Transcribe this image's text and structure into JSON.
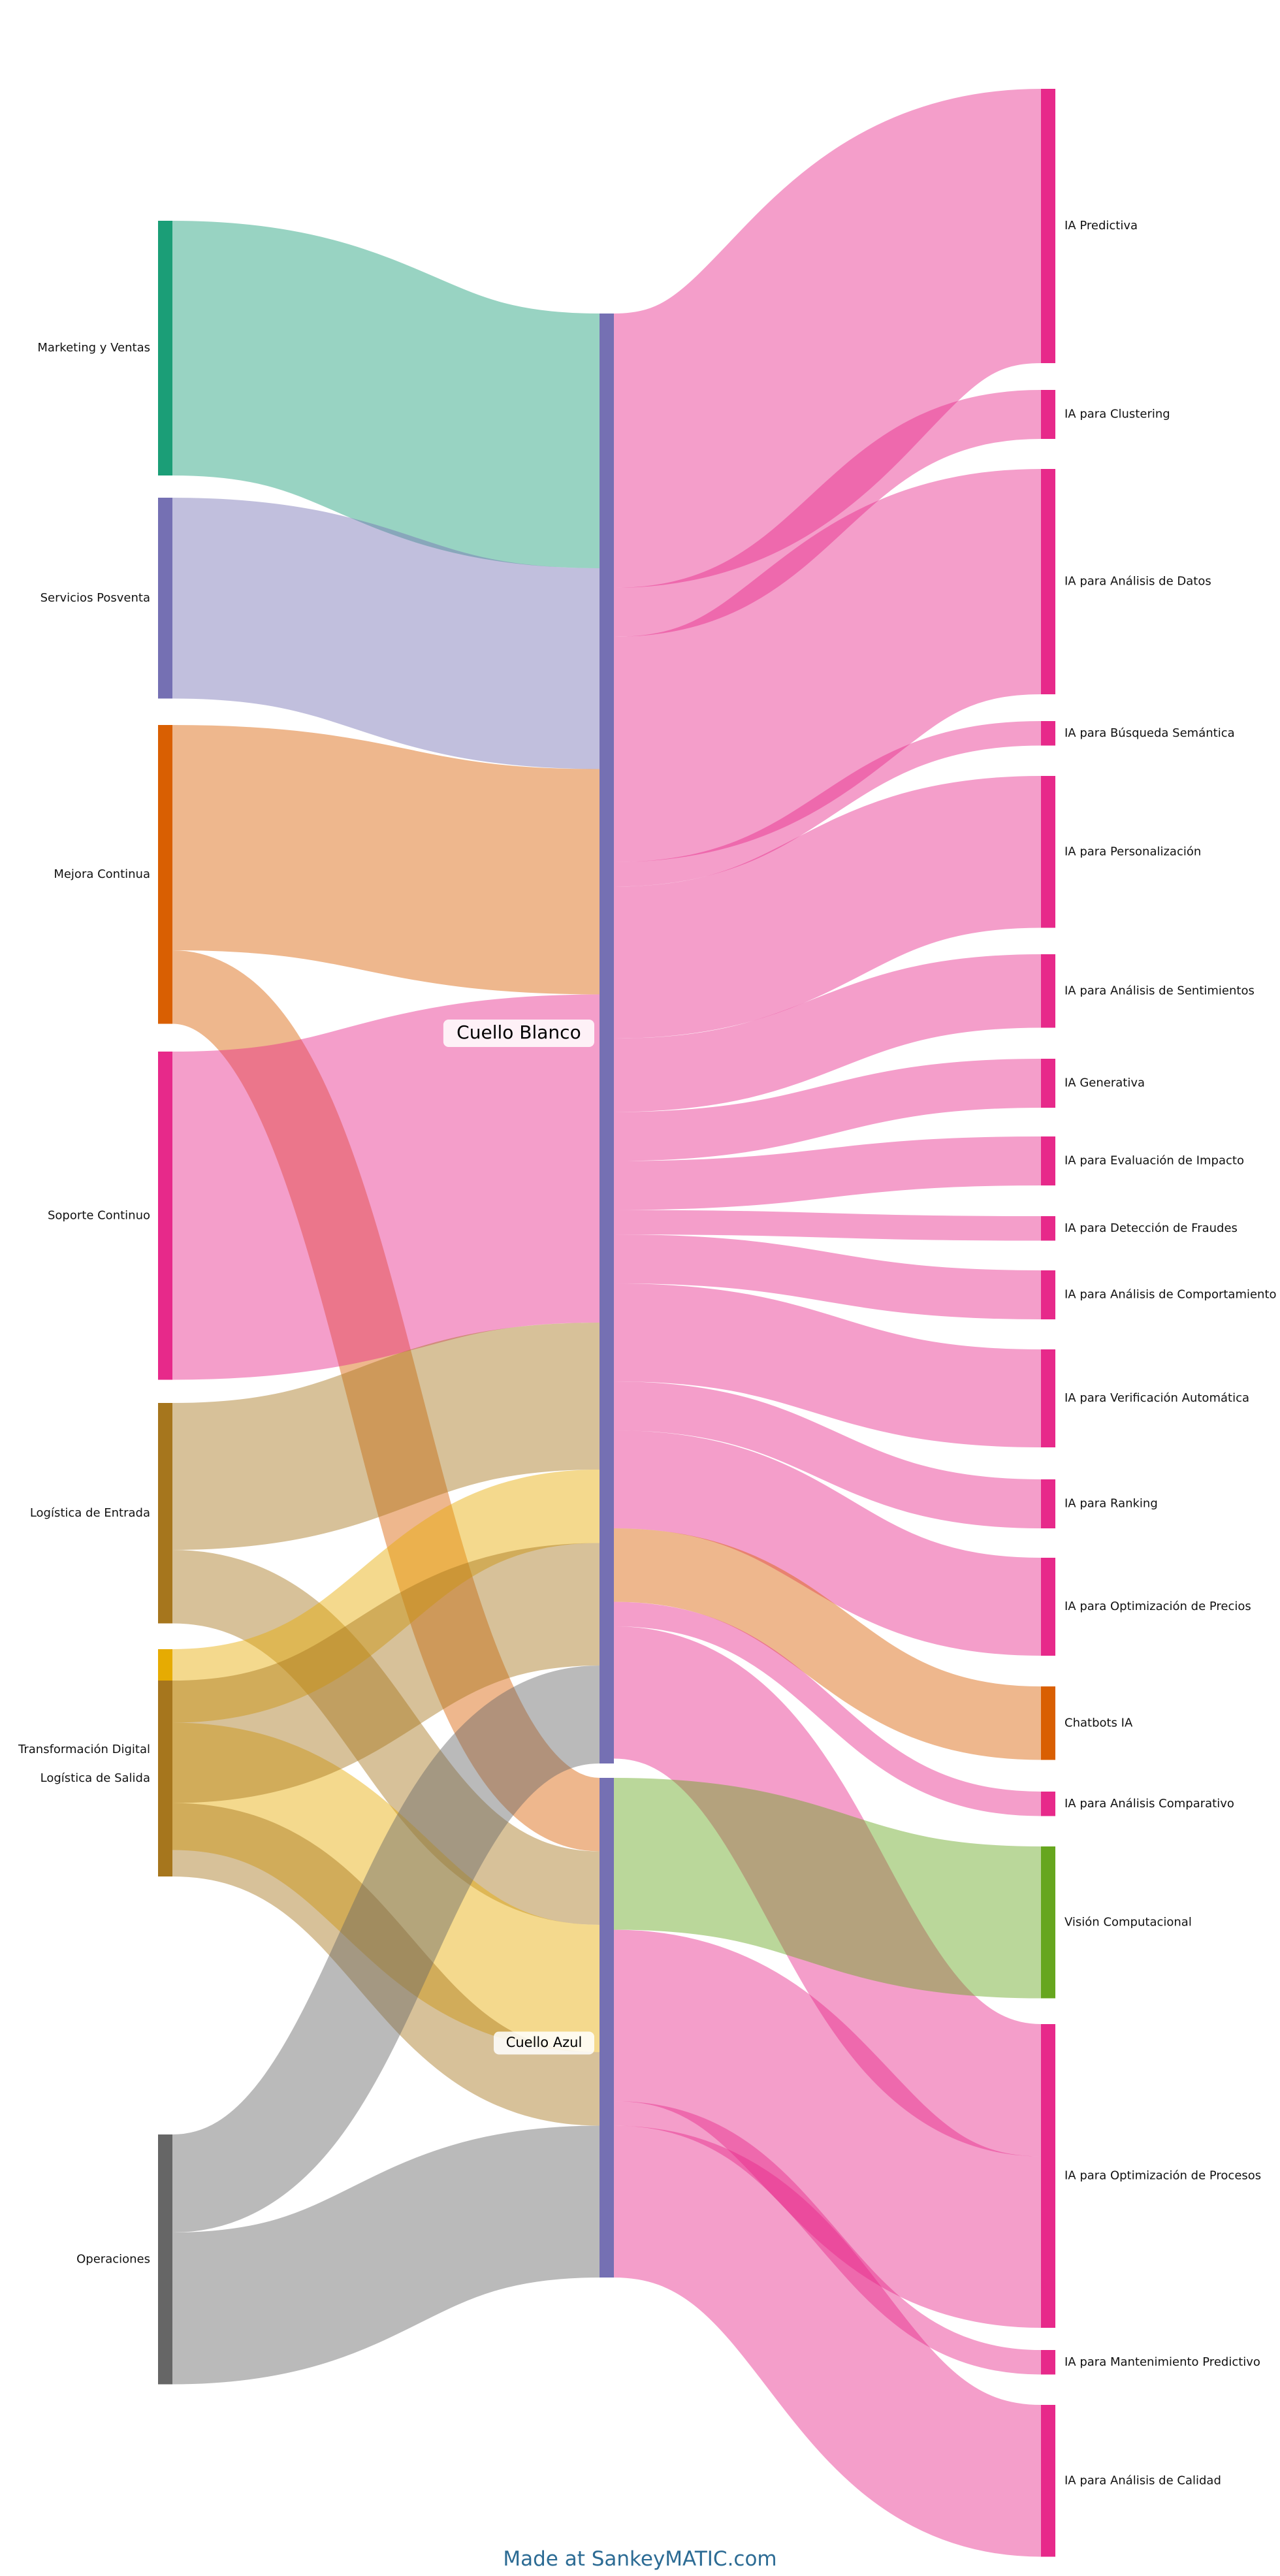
{
  "colors": {
    "marketing": "#1b9e77",
    "posventa": "#7570b3",
    "mejora": "#d95f02",
    "soporte": "#e7298a",
    "logistica": "#a6761d",
    "transformacion": "#e6ab02",
    "operaciones": "#666666",
    "hub": "#7570b3",
    "ia": "#e7298a",
    "chatbots": "#d95f02",
    "vision": "#66a61e"
  },
  "sources": [
    {
      "id": "mv",
      "label": "Marketing y Ventas",
      "color": "marketing"
    },
    {
      "id": "sp",
      "label": "Servicios Posventa",
      "color": "posventa"
    },
    {
      "id": "mc",
      "label": "Mejora Continua",
      "color": "mejora"
    },
    {
      "id": "sc",
      "label": "Soporte Continuo",
      "color": "soporte"
    },
    {
      "id": "le",
      "label": "Logística de Entrada",
      "color": "logistica"
    },
    {
      "id": "td",
      "label": "Transformación Digital",
      "color": "transformacion"
    },
    {
      "id": "ls",
      "label": "Logística de Salida",
      "color": "logistica"
    },
    {
      "id": "op",
      "label": "Operaciones",
      "color": "operaciones"
    }
  ],
  "hubs": [
    {
      "id": "cb",
      "label": "Cuello Blanco",
      "color": "hub"
    },
    {
      "id": "ca",
      "label": "Cuello Azul",
      "color": "hub"
    }
  ],
  "targets": [
    {
      "id": "t1",
      "label": "IA Predictiva",
      "color": "ia"
    },
    {
      "id": "t2",
      "label": "IA para Clustering",
      "color": "ia"
    },
    {
      "id": "t3",
      "label": "IA para Análisis de Datos",
      "color": "ia"
    },
    {
      "id": "t4",
      "label": "IA para Búsqueda Semántica",
      "color": "ia"
    },
    {
      "id": "t5",
      "label": "IA para Personalización",
      "color": "ia"
    },
    {
      "id": "t6",
      "label": "IA para Análisis de Sentimientos",
      "color": "ia"
    },
    {
      "id": "t7",
      "label": "IA Generativa",
      "color": "ia"
    },
    {
      "id": "t8",
      "label": "IA para Evaluación de Impacto",
      "color": "ia"
    },
    {
      "id": "t9",
      "label": "IA para Detección de Fraudes",
      "color": "ia"
    },
    {
      "id": "t10",
      "label": "IA para Análisis de Comportamiento",
      "color": "ia"
    },
    {
      "id": "t11",
      "label": "IA para Verificación Automática",
      "color": "ia"
    },
    {
      "id": "t12",
      "label": "IA para Ranking",
      "color": "ia"
    },
    {
      "id": "t13",
      "label": "IA para Optimización de Precios",
      "color": "ia"
    },
    {
      "id": "t14",
      "label": "Chatbots IA",
      "color": "chatbots"
    },
    {
      "id": "t15",
      "label": "IA para Análisis Comparativo",
      "color": "ia"
    },
    {
      "id": "t16",
      "label": "Visión Computacional",
      "color": "vision"
    },
    {
      "id": "t17",
      "label": "IA para Optimización de Procesos",
      "color": "ia"
    },
    {
      "id": "t18",
      "label": "IA para Mantenimiento Predictivo",
      "color": "ia"
    },
    {
      "id": "t19",
      "label": "IA para Análisis de Calidad",
      "color": "ia"
    }
  ],
  "flows_in": [
    {
      "from": "mv",
      "to": "cb",
      "value": 52
    },
    {
      "from": "sp",
      "to": "cb",
      "value": 41
    },
    {
      "from": "mc",
      "to": "cb",
      "value": 46
    },
    {
      "from": "mc",
      "to": "ca",
      "value": 15
    },
    {
      "from": "sc",
      "to": "cb",
      "value": 67
    },
    {
      "from": "le",
      "to": "cb",
      "value": 30
    },
    {
      "from": "le",
      "to": "ca",
      "value": 15
    },
    {
      "from": "td",
      "to": "cb",
      "value": 15
    },
    {
      "from": "td",
      "to": "ca",
      "value": 26
    },
    {
      "from": "ls",
      "to": "cb",
      "value": 25
    },
    {
      "from": "ls",
      "to": "ca",
      "value": 15
    },
    {
      "from": "op",
      "to": "cb",
      "value": 20
    },
    {
      "from": "op",
      "to": "ca",
      "value": 31
    }
  ],
  "flows_out": [
    {
      "from": "cb",
      "to": "t1",
      "value": 56
    },
    {
      "from": "cb",
      "to": "t2",
      "value": 10
    },
    {
      "from": "cb",
      "to": "t3",
      "value": 46
    },
    {
      "from": "cb",
      "to": "t4",
      "value": 5
    },
    {
      "from": "cb",
      "to": "t5",
      "value": 31
    },
    {
      "from": "cb",
      "to": "t6",
      "value": 15
    },
    {
      "from": "cb",
      "to": "t7",
      "value": 10
    },
    {
      "from": "cb",
      "to": "t8",
      "value": 10
    },
    {
      "from": "cb",
      "to": "t9",
      "value": 5
    },
    {
      "from": "cb",
      "to": "t10",
      "value": 10
    },
    {
      "from": "cb",
      "to": "t11",
      "value": 20
    },
    {
      "from": "cb",
      "to": "t12",
      "value": 10
    },
    {
      "from": "cb",
      "to": "t13",
      "value": 20
    },
    {
      "from": "cb",
      "to": "t14",
      "value": 15
    },
    {
      "from": "cb",
      "to": "t15",
      "value": 5
    },
    {
      "from": "cb",
      "to": "t17",
      "value": 27
    },
    {
      "from": "ca",
      "to": "t16",
      "value": 31
    },
    {
      "from": "ca",
      "to": "t17",
      "value": 35
    },
    {
      "from": "ca",
      "to": "t18",
      "value": 5
    },
    {
      "from": "ca",
      "to": "t19",
      "value": 31
    }
  ],
  "credit": "Made at SankeyMATIC.com"
}
